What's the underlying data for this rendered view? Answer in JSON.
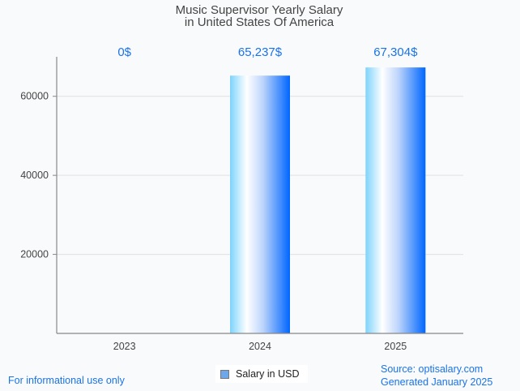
{
  "chart_data": {
    "type": "bar",
    "title": [
      "Music Supervisor Yearly Salary",
      "in United States Of America"
    ],
    "categories": [
      "2023",
      "2024",
      "2025"
    ],
    "series": [
      {
        "name": "Salary in USD",
        "values": [
          0,
          65237,
          67304
        ]
      }
    ],
    "data_labels": [
      "0$",
      "65,237$",
      "67,304$"
    ],
    "xlabel": "",
    "ylabel": "",
    "ylim": [
      0,
      70000
    ],
    "yticks": [
      20000,
      40000,
      60000
    ],
    "ytick_labels": [
      "20000",
      "40000",
      "60000"
    ],
    "grid": true,
    "legend": {
      "position": "bottom-center",
      "entries": [
        "Salary in USD"
      ]
    },
    "colors": {
      "bar_light": "#7dd3fc",
      "bar_mid": "#ffffff",
      "bar_dark": "#0066ff",
      "label": "#1a73e8"
    }
  },
  "footer": {
    "disclaimer": "For informational use only",
    "source": "Source: optisalary.com",
    "generated": "Generated January 2025"
  }
}
